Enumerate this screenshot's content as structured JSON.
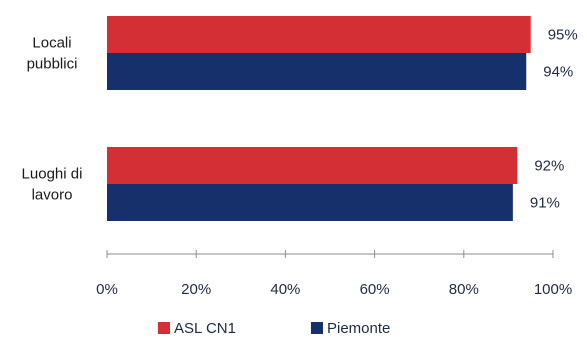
{
  "chart_data": {
    "type": "bar",
    "orientation": "horizontal",
    "categories": [
      "Locali pubblici",
      "Luoghi di lavoro"
    ],
    "category_lines": [
      [
        "Locali",
        "pubblici"
      ],
      [
        "Luoghi di",
        "lavoro"
      ]
    ],
    "series": [
      {
        "name": "ASL CN1",
        "color": "#d42f35",
        "values": [
          95,
          92
        ],
        "labels": [
          "95%",
          "92%"
        ]
      },
      {
        "name": "Piemonte",
        "color": "#16306b",
        "values": [
          94,
          91
        ],
        "labels": [
          "94%",
          "91%"
        ]
      }
    ],
    "xlim": [
      0,
      100
    ],
    "ticks": [
      0,
      20,
      40,
      60,
      80,
      100
    ],
    "tick_labels": [
      "0%",
      "20%",
      "40%",
      "60%",
      "80%",
      "100%"
    ],
    "grid": false,
    "legend_position": "bottom"
  }
}
